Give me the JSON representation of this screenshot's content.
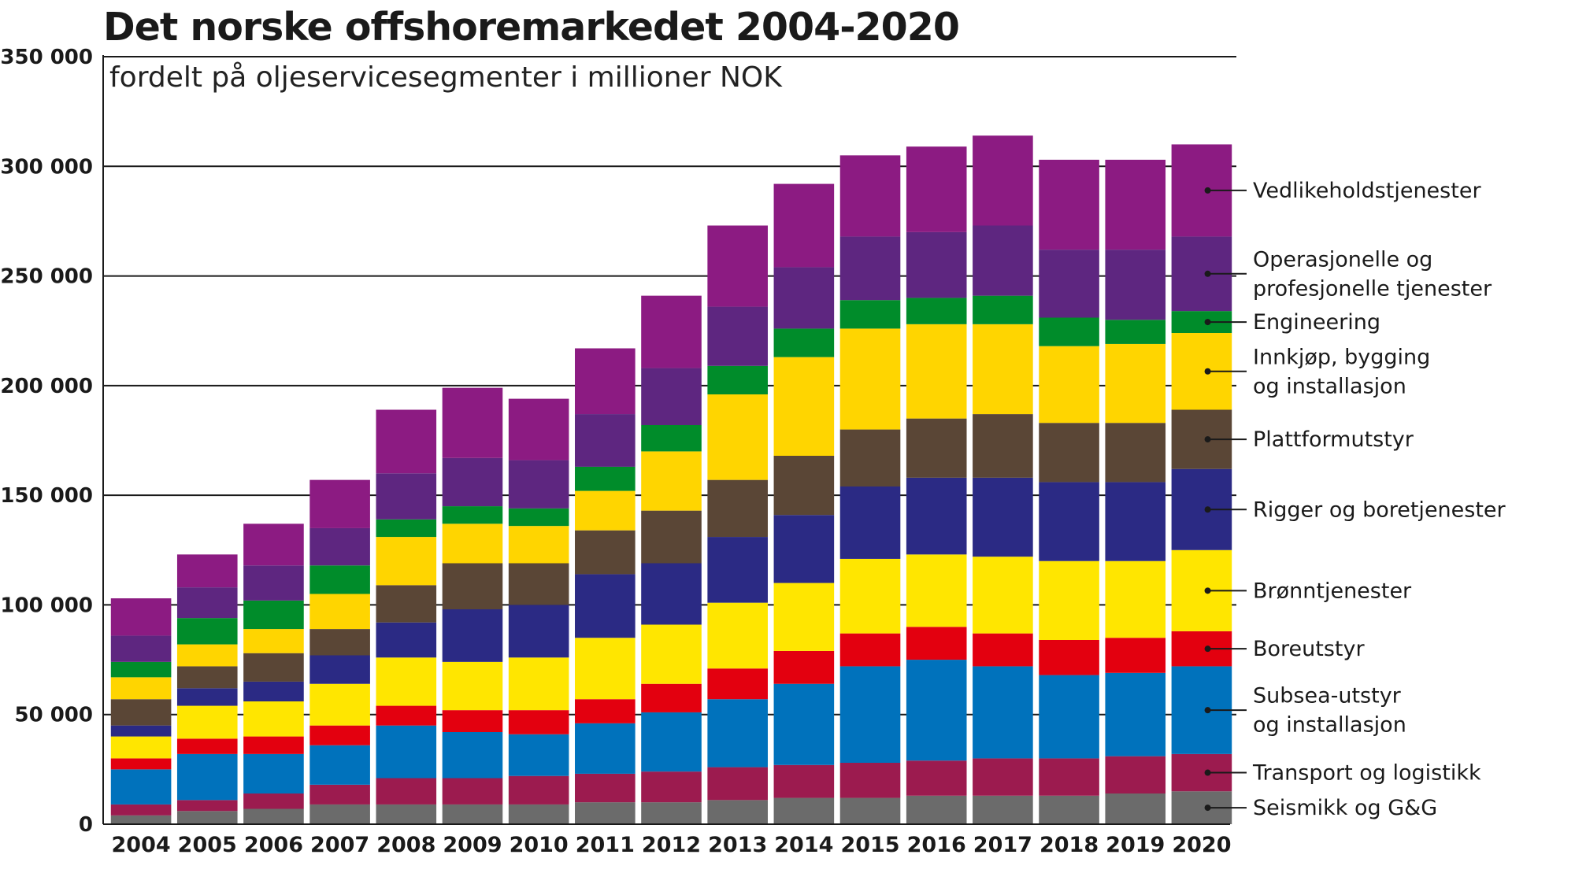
{
  "chart_data": {
    "type": "bar",
    "stacked": true,
    "title": "Det norske offshoremarkedet 2004-2020",
    "subtitle": "fordelt på oljeservicesegmenter i millioner NOK",
    "ylim": [
      0,
      350000
    ],
    "yticks": [
      0,
      50000,
      100000,
      150000,
      200000,
      250000,
      300000,
      350000
    ],
    "ytick_labels": [
      "0",
      "50 000",
      "100 000",
      "150 000",
      "200 000",
      "250 000",
      "300 000",
      "350 000"
    ],
    "grid": true,
    "legend_placement": "right",
    "categories": [
      "2004",
      "2005",
      "2006",
      "2007",
      "2008",
      "2009",
      "2010",
      "2011",
      "2012",
      "2013",
      "2014",
      "2015",
      "2016",
      "2017",
      "2018",
      "2019",
      "2020"
    ],
    "series": [
      {
        "name": "Seismikk og G&G",
        "color": "#6b6b6b",
        "values": [
          4000,
          6000,
          7000,
          9000,
          9000,
          9000,
          9000,
          10000,
          10000,
          11000,
          12000,
          12000,
          13000,
          13000,
          13000,
          14000,
          15000
        ]
      },
      {
        "name": "Transport og logistikk",
        "color": "#9c1b4f",
        "values": [
          5000,
          5000,
          7000,
          9000,
          12000,
          12000,
          13000,
          13000,
          14000,
          15000,
          15000,
          16000,
          16000,
          17000,
          17000,
          17000,
          17000
        ]
      },
      {
        "name": "Subsea-utstyr og installasjon",
        "color": "#0072bc",
        "values": [
          16000,
          21000,
          18000,
          18000,
          24000,
          21000,
          19000,
          23000,
          27000,
          31000,
          37000,
          44000,
          46000,
          42000,
          38000,
          38000,
          40000
        ]
      },
      {
        "name": "Boreutstyr",
        "color": "#e3000f",
        "values": [
          5000,
          7000,
          8000,
          9000,
          9000,
          10000,
          11000,
          11000,
          13000,
          14000,
          15000,
          15000,
          15000,
          15000,
          16000,
          16000,
          16000
        ]
      },
      {
        "name": "Brønntjenester",
        "color": "#ffe600",
        "values": [
          10000,
          15000,
          16000,
          19000,
          22000,
          22000,
          24000,
          28000,
          27000,
          30000,
          31000,
          34000,
          33000,
          35000,
          36000,
          35000,
          37000
        ]
      },
      {
        "name": "Rigger og boretjenester",
        "color": "#2b2a84",
        "values": [
          5000,
          8000,
          9000,
          13000,
          16000,
          24000,
          24000,
          29000,
          28000,
          30000,
          31000,
          33000,
          35000,
          36000,
          36000,
          36000,
          37000
        ]
      },
      {
        "name": "Plattformutstyr",
        "color": "#5a4636",
        "values": [
          12000,
          10000,
          13000,
          12000,
          17000,
          21000,
          19000,
          20000,
          24000,
          26000,
          27000,
          26000,
          27000,
          29000,
          27000,
          27000,
          27000
        ]
      },
      {
        "name": "Innkjøp, bygging og installasjon",
        "color": "#ffd500",
        "values": [
          10000,
          10000,
          11000,
          16000,
          22000,
          18000,
          17000,
          18000,
          27000,
          39000,
          45000,
          46000,
          43000,
          41000,
          35000,
          36000,
          35000
        ]
      },
      {
        "name": "Engineering",
        "color": "#008c2a",
        "values": [
          7000,
          12000,
          13000,
          13000,
          8000,
          8000,
          8000,
          11000,
          12000,
          13000,
          13000,
          13000,
          12000,
          13000,
          13000,
          11000,
          10000
        ]
      },
      {
        "name": "Operasjonelle og profesjonelle tjenester",
        "color": "#5e2680",
        "values": [
          12000,
          14000,
          16000,
          17000,
          21000,
          22000,
          22000,
          24000,
          26000,
          27000,
          28000,
          29000,
          30000,
          32000,
          31000,
          32000,
          34000
        ]
      },
      {
        "name": "Vedlikeholdstjenester",
        "color": "#8c1b82",
        "values": [
          17000,
          15000,
          19000,
          22000,
          29000,
          32000,
          28000,
          30000,
          33000,
          37000,
          38000,
          37000,
          39000,
          41000,
          41000,
          41000,
          42000
        ]
      }
    ],
    "legend_labels": [
      {
        "series": "Vedlikeholdstjenester",
        "lines": [
          "Vedlikeholdstjenester"
        ]
      },
      {
        "series": "Operasjonelle og profesjonelle tjenester",
        "lines": [
          "Operasjonelle og",
          "profesjonelle tjenester"
        ]
      },
      {
        "series": "Engineering",
        "lines": [
          "Engineering"
        ]
      },
      {
        "series": "Innkjøp, bygging og installasjon",
        "lines": [
          "Innkjøp, bygging",
          "og installasjon"
        ]
      },
      {
        "series": "Plattformutstyr",
        "lines": [
          "Plattformutstyr"
        ]
      },
      {
        "series": "Rigger og boretjenester",
        "lines": [
          "Rigger og boretjenester"
        ]
      },
      {
        "series": "Brønntjenester",
        "lines": [
          "Brønntjenester"
        ]
      },
      {
        "series": "Boreutstyr",
        "lines": [
          "Boreutstyr"
        ]
      },
      {
        "series": "Subsea-utstyr og installasjon",
        "lines": [
          "Subsea-utstyr",
          "og installasjon"
        ]
      },
      {
        "series": "Transport og logistikk",
        "lines": [
          "Transport og logistikk"
        ]
      },
      {
        "series": "Seismikk og G&G",
        "lines": [
          "Seismikk og G&G"
        ]
      }
    ]
  }
}
